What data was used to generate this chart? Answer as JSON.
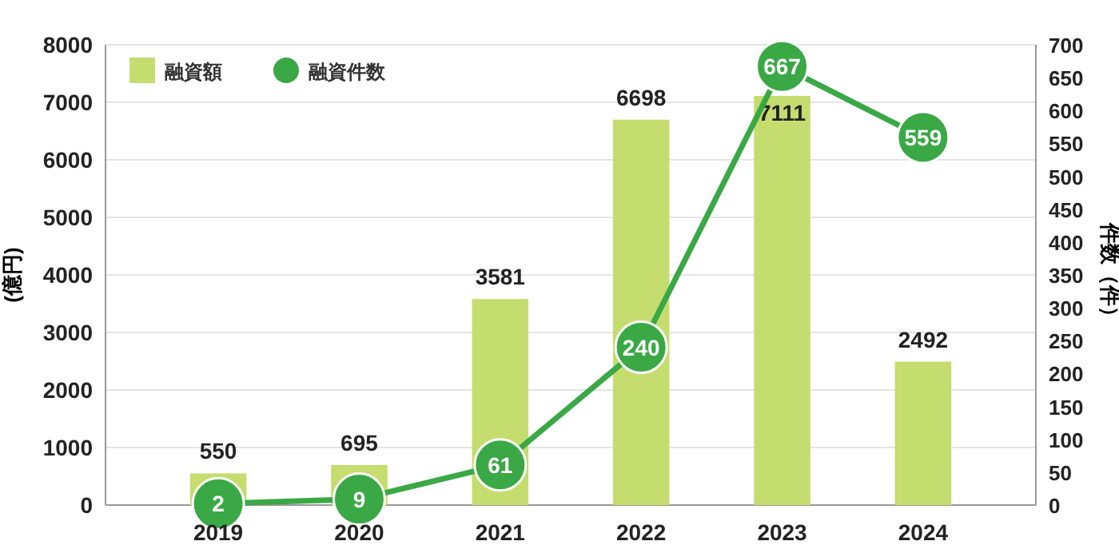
{
  "chart_data": {
    "type": "bar",
    "categories": [
      "2019",
      "2020",
      "2021",
      "2022",
      "2023",
      "2024"
    ],
    "ylabel": "(億円)",
    "y2label": "件数（件）",
    "ylim": [
      0,
      8000
    ],
    "yticks": [
      0,
      1000,
      2000,
      3000,
      4000,
      5000,
      6000,
      7000,
      8000
    ],
    "y2lim": [
      0,
      700
    ],
    "y2ticks": [
      0,
      50,
      100,
      150,
      200,
      250,
      300,
      350,
      400,
      450,
      500,
      550,
      600,
      650,
      700
    ],
    "grid": "y",
    "legend": "top left",
    "data_labels": true,
    "marker": "circle",
    "line_style": "solid",
    "series": [
      {
        "name": "融資額",
        "color": "#c5dc6e",
        "values": [
          550,
          695,
          3581,
          6698,
          7111,
          2492
        ]
      },
      {
        "name": "融資件数",
        "type": "line",
        "axis": "y2",
        "color": "#3aa845",
        "values": [
          2,
          9,
          61,
          240,
          667,
          559
        ]
      }
    ]
  }
}
